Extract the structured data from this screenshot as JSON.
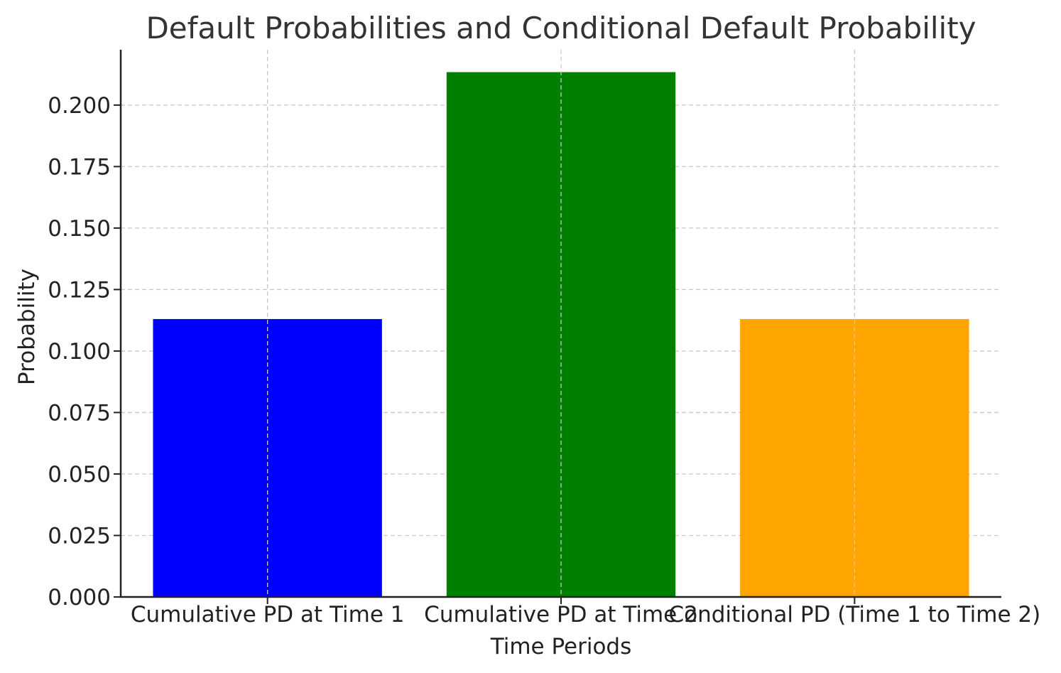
{
  "chart_data": {
    "type": "bar",
    "title": "Default Probabilities and Conditional Default Probability",
    "xlabel": "Time Periods",
    "ylabel": "Probability",
    "categories": [
      "Cumulative PD at Time 1",
      "Cumulative PD at Time 2",
      "Conditional PD (Time 1 to Time 2)"
    ],
    "values": [
      0.113,
      0.2134,
      0.113
    ],
    "colors": [
      "#0000ff",
      "#008000",
      "#ffa500"
    ],
    "ylim": [
      0,
      0.2225
    ],
    "yticks": [
      "0.000",
      "0.025",
      "0.050",
      "0.075",
      "0.100",
      "0.125",
      "0.150",
      "0.175",
      "0.200"
    ],
    "grid": true,
    "grid_style": "dashed"
  }
}
